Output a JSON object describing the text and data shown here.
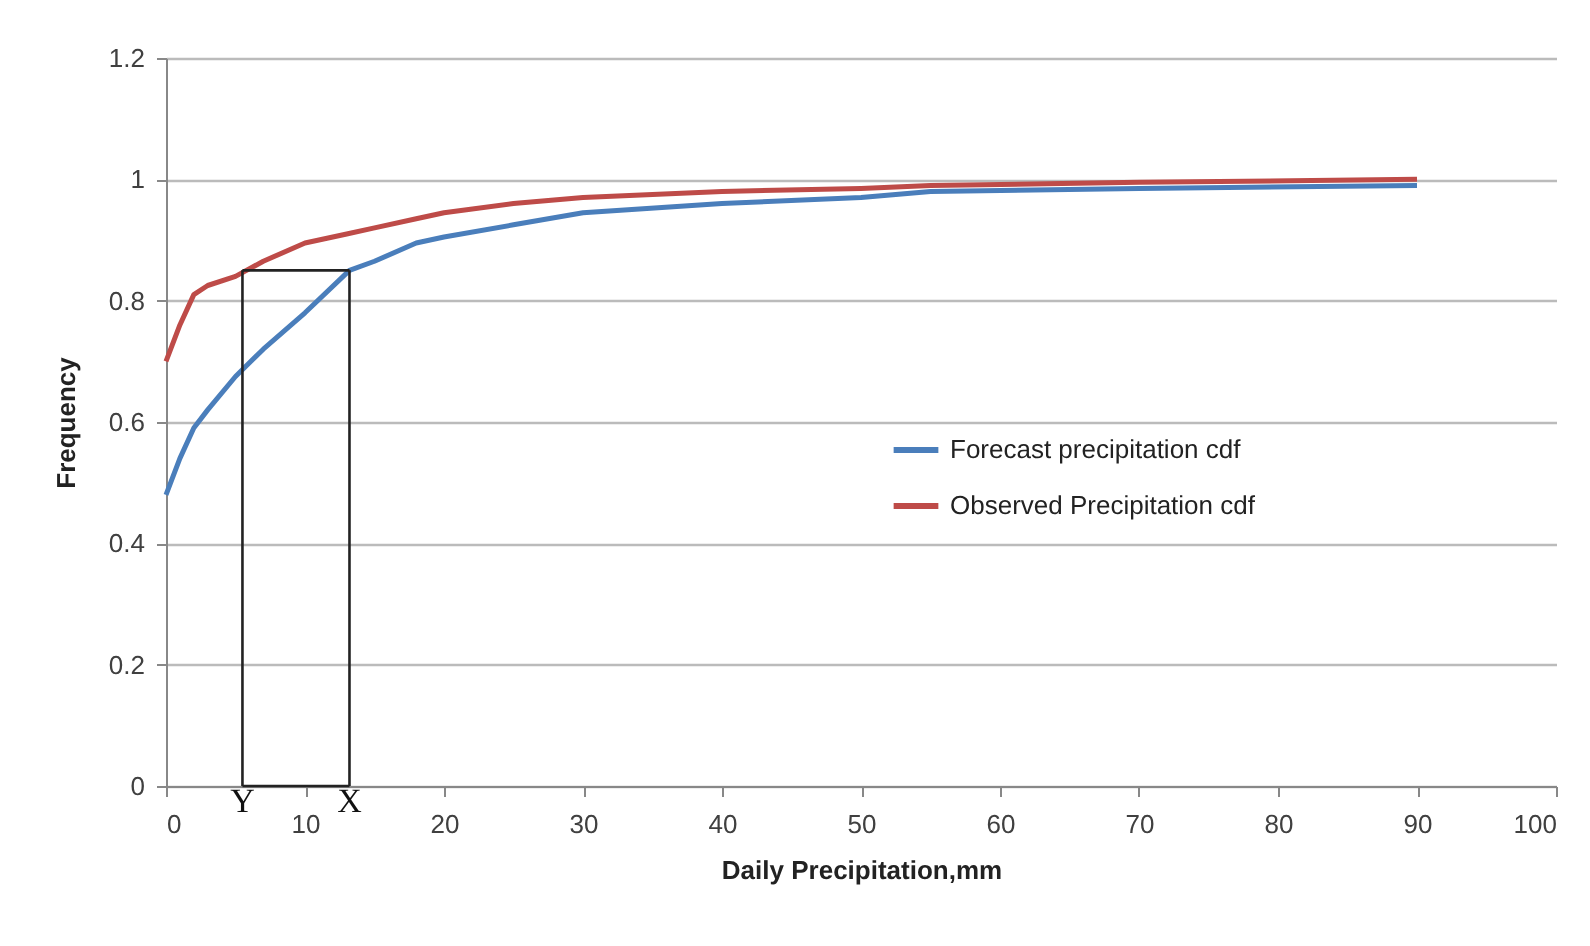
{
  "chart_data": {
    "type": "line",
    "xlabel": "Daily Precipitation,mm",
    "ylabel": "Frequency",
    "xlim": [
      0,
      100
    ],
    "xticks": [
      0,
      10,
      20,
      30,
      40,
      50,
      60,
      70,
      80,
      90,
      100
    ],
    "ylim": [
      0,
      1.2
    ],
    "yticks": [
      0,
      0.2,
      0.4,
      0.6,
      0.8,
      1,
      1.2
    ],
    "grid": "y",
    "legend": "right",
    "marker": "none",
    "line_style": "solid",
    "series": [
      {
        "name": "Forecast precipitation cdf",
        "color": "#4a7ebb",
        "x": [
          0,
          1,
          2,
          3,
          5,
          7,
          10,
          13.2,
          15,
          18,
          20,
          25,
          30,
          40,
          50,
          55,
          70,
          90
        ],
        "values": [
          0.48,
          0.54,
          0.59,
          0.62,
          0.675,
          0.72,
          0.78,
          0.85,
          0.865,
          0.895,
          0.905,
          0.925,
          0.945,
          0.96,
          0.97,
          0.98,
          0.985,
          0.99
        ]
      },
      {
        "name": "Observed Precipitation cdf",
        "color": "#be4b48",
        "x": [
          0,
          1,
          2,
          3,
          5,
          7,
          10,
          13,
          15,
          18,
          20,
          25,
          30,
          40,
          50,
          55,
          70,
          90
        ],
        "values": [
          0.7,
          0.76,
          0.81,
          0.825,
          0.84,
          0.865,
          0.895,
          0.91,
          0.92,
          0.935,
          0.945,
          0.96,
          0.97,
          0.98,
          0.985,
          0.99,
          0.995,
          1.0
        ]
      },
      {
        "type": "line",
        "color": "#222222",
        "x": [
          5.5,
          13.2
        ],
        "values": [
          0.85,
          0.85
        ]
      }
    ],
    "ref_lines": [
      {
        "axis": "x",
        "value": 5.5,
        "label": "Y",
        "color": "#222222"
      },
      {
        "axis": "x",
        "value": 13.2,
        "label": "X",
        "color": "#222222"
      }
    ]
  }
}
